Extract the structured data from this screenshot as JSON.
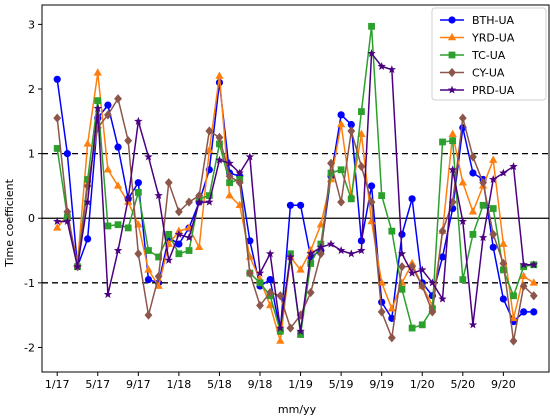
{
  "chart_data": {
    "type": "line",
    "xlabel": "mm/yy",
    "ylabel": "Time coefficient",
    "x_ticks": [
      "1/17",
      "5/17",
      "9/17",
      "1/18",
      "5/18",
      "9/18",
      "1/19",
      "5/19",
      "9/19",
      "1/20",
      "5/20",
      "9/20"
    ],
    "x": [
      1,
      2,
      3,
      4,
      5,
      6,
      7,
      8,
      9,
      10,
      11,
      12,
      13,
      14,
      15,
      16,
      17,
      18,
      19,
      20,
      21,
      22,
      23,
      24,
      25,
      26,
      27,
      28,
      29,
      30,
      31,
      32,
      33,
      34,
      35,
      36,
      37,
      38,
      39,
      40,
      41,
      42,
      43,
      44,
      45,
      46,
      47,
      48
    ],
    "xlim": [
      -0.5,
      49.5
    ],
    "ylim": [
      -2.38,
      3.3
    ],
    "y_ticks": [
      -2,
      -1,
      0,
      1,
      2,
      3
    ],
    "reference_lines": [
      {
        "y": 0,
        "style": "solid"
      },
      {
        "y": 1,
        "style": "dashed"
      },
      {
        "y": -1,
        "style": "dashed"
      }
    ],
    "legend_position": "top-right",
    "series": [
      {
        "name": "BTH-UA",
        "color": "#0000ff",
        "marker": "circle",
        "values": [
          2.15,
          1.0,
          -0.75,
          -0.32,
          1.55,
          1.75,
          1.1,
          0.3,
          0.55,
          -0.95,
          -1.0,
          -0.3,
          -0.4,
          -0.15,
          0.25,
          0.75,
          2.1,
          0.7,
          0.65,
          -0.35,
          -1.05,
          -0.95,
          -1.75,
          0.2,
          0.2,
          -0.6,
          -0.5,
          0.65,
          1.6,
          1.45,
          -0.35,
          0.5,
          -1.3,
          -1.55,
          -0.25,
          0.3,
          -1.0,
          -1.2,
          -0.6,
          0.15,
          1.4,
          0.7,
          0.6,
          -0.45,
          -1.25,
          -1.6,
          -1.45,
          -1.45
        ]
      },
      {
        "name": "YRD-UA",
        "color": "#ff7f0e",
        "marker": "triangle",
        "values": [
          -0.15,
          0.05,
          -0.7,
          1.15,
          2.25,
          0.75,
          0.5,
          0.25,
          -0.1,
          -0.8,
          -1.05,
          -0.4,
          -0.2,
          -0.15,
          -0.45,
          1.05,
          2.2,
          0.35,
          0.2,
          -0.6,
          -0.95,
          -1.35,
          -1.9,
          -0.6,
          -0.8,
          -0.5,
          -0.1,
          0.6,
          1.45,
          0.35,
          1.3,
          -0.05,
          -1.0,
          -1.4,
          -1.0,
          -0.7,
          -1.05,
          -1.35,
          -0.2,
          1.3,
          0.55,
          0.1,
          0.5,
          0.9,
          -0.4,
          -1.55,
          -0.9,
          -1.0
        ]
      },
      {
        "name": "TC-UA",
        "color": "#2ca02c",
        "marker": "square",
        "values": [
          1.08,
          0.02,
          -0.75,
          0.6,
          1.82,
          -0.12,
          -0.1,
          -0.15,
          0.4,
          -0.5,
          -0.6,
          -0.25,
          -0.55,
          -0.5,
          0.3,
          0.35,
          1.15,
          0.55,
          0.6,
          -0.85,
          -1.0,
          -1.2,
          -1.75,
          -0.55,
          -1.8,
          -0.7,
          -0.4,
          0.7,
          0.75,
          0.3,
          1.65,
          2.97,
          0.35,
          -0.2,
          -1.1,
          -1.7,
          -1.65,
          -1.4,
          1.18,
          1.2,
          -0.95,
          -0.25,
          0.2,
          0.15,
          -0.8,
          -1.2,
          -0.75,
          -0.72
        ]
      },
      {
        "name": "CY-UA",
        "color": "#8c564b",
        "marker": "diamond",
        "values": [
          1.55,
          0.1,
          -0.75,
          0.5,
          1.4,
          1.6,
          1.85,
          1.2,
          -0.55,
          -1.5,
          -0.9,
          0.55,
          0.1,
          0.25,
          0.35,
          1.35,
          1.25,
          0.65,
          0.55,
          -0.85,
          -1.35,
          -1.15,
          -1.2,
          -1.7,
          -1.5,
          -1.15,
          -0.55,
          0.85,
          0.25,
          1.35,
          0.8,
          0.25,
          -1.45,
          -1.85,
          -0.75,
          -0.75,
          -1.05,
          -1.45,
          -0.2,
          0.25,
          1.55,
          0.95,
          0.55,
          -0.25,
          -0.7,
          -1.9,
          -1.05,
          -1.2
        ]
      },
      {
        "name": "PRD-UA",
        "color": "#4b0082",
        "marker": "star",
        "values": [
          -0.05,
          -0.05,
          -0.75,
          0.25,
          1.7,
          -1.18,
          -0.5,
          0.3,
          1.5,
          0.95,
          0.35,
          -0.65,
          -0.25,
          -0.3,
          0.25,
          0.25,
          0.9,
          0.85,
          0.7,
          0.95,
          -0.85,
          -0.55,
          -1.7,
          -0.6,
          -1.75,
          -0.55,
          -0.45,
          -0.4,
          -0.5,
          -0.55,
          -0.5,
          2.55,
          2.35,
          2.3,
          -0.55,
          -0.85,
          -0.8,
          -1.0,
          -1.25,
          0.75,
          -0.05,
          -1.65,
          -0.3,
          0.6,
          0.7,
          0.8,
          -0.72,
          -0.72
        ]
      }
    ]
  }
}
